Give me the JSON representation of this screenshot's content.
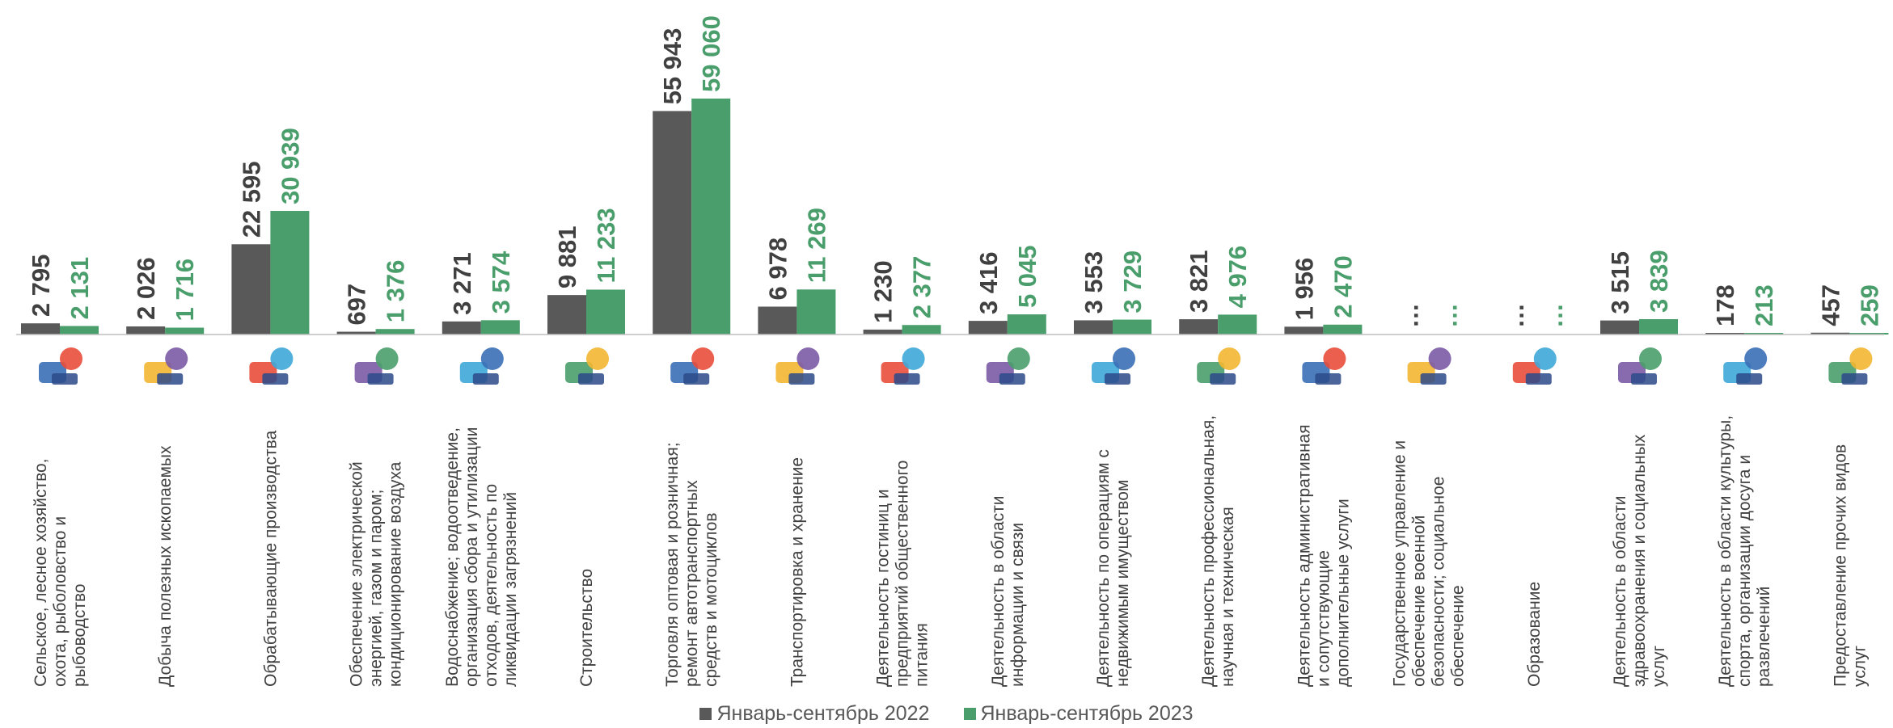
{
  "chart_data": {
    "type": "bar",
    "title": "",
    "xlabel": "",
    "ylabel": "",
    "ylim": [
      0,
      61000
    ],
    "grid": false,
    "legend": "bottom",
    "categories": [
      "Сельское, лесное хозяйство, охота, рыболовство и рыбоводство",
      "Добыча полезных ископаемых",
      "Обрабатывающие производства",
      "Обеспечение электрической энергией, газом и паром; кондиционирование воздуха",
      "Водоснабжение; водоотведение, организация сбора и утилизации отходов, деятельность по ликвидации загрязнений",
      "Строительство",
      "Торговля оптовая и розничная; ремонт автотранспортных средств и мотоциклов",
      "Транспортировка и хранение",
      "Деятельность гостиниц и предприятий общественного питания",
      "Деятельность в области информации и связи",
      "Деятельность по операциям с недвижимым имуществом",
      "Деятельность профессиональная, научная и техническая",
      "Деятельность административная и сопутствующие дополнительные услуги",
      "Государственное управление и обеспечение военной безопасности; социальное обеспечение",
      "Образование",
      "Деятельность в области здравоохранения и социальных услуг",
      "Деятельность в области культуры, спорта, организации досуга и развлечений",
      "Предоставление прочих видов услуг"
    ],
    "category_lines": [
      [
        "Сельское, лесное хозяйство,",
        "охота, рыболовство и",
        "рыбоводство"
      ],
      [
        "Добыча полезных ископаемых"
      ],
      [
        "Обрабатывающие производства"
      ],
      [
        "Обеспечение электрической",
        "энергией, газом и паром;",
        "кондиционирование воздуха"
      ],
      [
        "Водоснабжение; водоотведение,",
        "организация сбора и утилизации",
        "отходов, деятельность по",
        "ликвидации загрязнений"
      ],
      [
        "Строительство"
      ],
      [
        "Торговля оптовая и розничная;",
        "ремонт автотранспортных",
        "средств и мотоциклов"
      ],
      [
        "Транспортировка и хранение"
      ],
      [
        "Деятельность гостиниц и",
        "предприятий общественного",
        "питания"
      ],
      [
        "Деятельность в области",
        "информации и связи"
      ],
      [
        "Деятельность по операциям с",
        "недвижимым имуществом"
      ],
      [
        "Деятельность профессиональная,",
        "научная и техническая"
      ],
      [
        "Деятельность административная",
        "и сопутствующие",
        "дополнительные услуги"
      ],
      [
        "Государственное управление и",
        "обеспечение военной",
        "безопасности; социальное",
        "обеспечение"
      ],
      [
        "Образование"
      ],
      [
        "Деятельность в области",
        "здравоохранения и социальных",
        "услуг"
      ],
      [
        "Деятельность в области культуры,",
        "спорта, организации досуга и",
        "развлечений"
      ],
      [
        "Предоставление прочих видов",
        "услуг"
      ]
    ],
    "icons": [
      "fishing-rod-rake-icon",
      "shovel-gem-icon",
      "hammer-gear-icon",
      "flame-bulb-icon",
      "water-pipe-icon",
      "trowel-brick-icon",
      "car-wrench-icon",
      "bus-box-icon",
      "food-platter-icon",
      "telephone-envelope-icon",
      "house-key-icon",
      "microscope-icon",
      "office-building-icon",
      "official-person-icon",
      "graduation-cap-icon",
      "stethoscope-icon",
      "tickets-icon",
      "service-person-icon"
    ],
    "series": [
      {
        "name": "Январь-сентябрь 2022",
        "color": "#595959",
        "values": [
          2795,
          2026,
          22595,
          697,
          3271,
          9881,
          55943,
          6978,
          1230,
          3416,
          3553,
          3821,
          1956,
          null,
          null,
          3515,
          178,
          457
        ],
        "labels": [
          "2 795",
          "2 026",
          "22 595",
          "697",
          "3 271",
          "9 881",
          "55 943",
          "6 978",
          "1 230",
          "3 416",
          "3 553",
          "3 821",
          "1 956",
          "…",
          "…",
          "3 515",
          "178",
          "457"
        ]
      },
      {
        "name": "Январь-сентябрь 2023",
        "color": "#4a9e6b",
        "values": [
          2131,
          1716,
          30939,
          1376,
          3574,
          11233,
          59060,
          11269,
          2377,
          5045,
          3729,
          4976,
          2470,
          null,
          null,
          3839,
          213,
          259
        ],
        "labels": [
          "2 131",
          "1 716",
          "30 939",
          "1 376",
          "3 574",
          "11 233",
          "59 060",
          "11 269",
          "2 377",
          "5 045",
          "3 729",
          "4 976",
          "2 470",
          "…",
          "…",
          "3 839",
          "213",
          "259"
        ]
      }
    ]
  }
}
